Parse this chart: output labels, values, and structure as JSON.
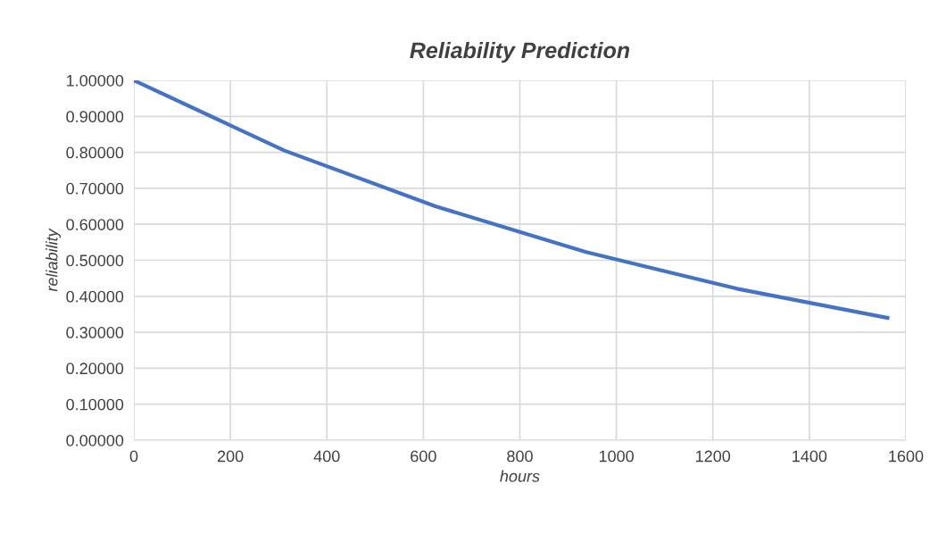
{
  "chart_data": {
    "type": "line",
    "title": "Reliability Prediction",
    "xlabel": "hours",
    "ylabel": "reliability",
    "x": [
      0,
      312,
      625,
      937,
      1250,
      1562
    ],
    "series": [
      {
        "color": "#4472c4",
        "values": [
          1.0,
          0.805,
          0.65,
          0.523,
          0.421,
          0.34
        ]
      }
    ],
    "xlim": [
      0,
      1600
    ],
    "xticks": [
      0,
      200,
      400,
      600,
      800,
      1000,
      1200,
      1400,
      1600
    ],
    "ylim": [
      0,
      1
    ],
    "yticks": [
      {
        "value": 0,
        "label": "0.00000"
      },
      {
        "value": 0.1,
        "label": "0.10000"
      },
      {
        "value": 0.2,
        "label": "0.20000"
      },
      {
        "value": 0.3,
        "label": "0.30000"
      },
      {
        "value": 0.4,
        "label": "0.40000"
      },
      {
        "value": 0.5,
        "label": "0.50000"
      },
      {
        "value": 0.6,
        "label": "0.60000"
      },
      {
        "value": 0.7,
        "label": "0.70000"
      },
      {
        "value": 0.8,
        "label": "0.80000"
      },
      {
        "value": 0.9,
        "label": "0.90000"
      },
      {
        "value": 1,
        "label": "1.00000"
      }
    ],
    "grid": true,
    "marker": "none",
    "line_style": "solid"
  }
}
